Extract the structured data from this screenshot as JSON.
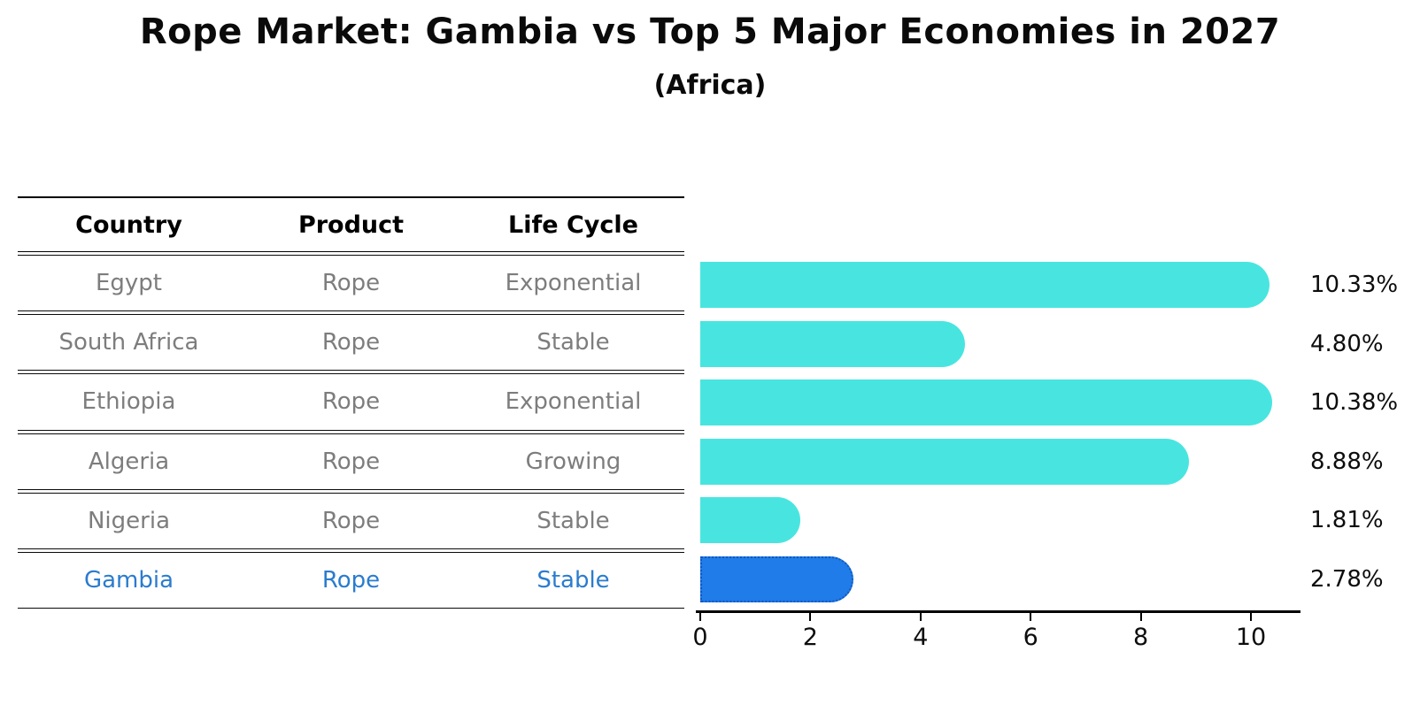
{
  "title": "Rope Market: Gambia vs Top 5 Major Economies in 2027",
  "subtitle": "(Africa)",
  "table": {
    "headers": [
      "Country",
      "Product",
      "Life Cycle"
    ],
    "rows": [
      {
        "country": "Egypt",
        "product": "Rope",
        "life_cycle": "Exponential",
        "highlighted": false
      },
      {
        "country": "South Africa",
        "product": "Rope",
        "life_cycle": "Stable",
        "highlighted": false
      },
      {
        "country": "Ethiopia",
        "product": "Rope",
        "life_cycle": "Exponential",
        "highlighted": false
      },
      {
        "country": "Algeria",
        "product": "Rope",
        "life_cycle": "Growing",
        "highlighted": false
      },
      {
        "country": "Nigeria",
        "product": "Rope",
        "life_cycle": "Stable",
        "highlighted": false
      },
      {
        "country": "Gambia",
        "product": "Rope",
        "life_cycle": "Stable",
        "highlighted": true
      }
    ]
  },
  "chart_data": {
    "type": "bar",
    "orientation": "horizontal",
    "title": "Rope Market: Gambia vs Top 5 Major Economies in 2027",
    "subtitle": "(Africa)",
    "categories": [
      "Egypt",
      "South Africa",
      "Ethiopia",
      "Algeria",
      "Nigeria",
      "Gambia"
    ],
    "values": [
      10.33,
      4.8,
      10.38,
      8.88,
      1.81,
      2.78
    ],
    "value_labels": [
      "10.33%",
      "4.80%",
      "10.38%",
      "8.88%",
      "1.81%",
      "2.78%"
    ],
    "unit": "percent",
    "xlabel": "",
    "ylabel": "",
    "xticks": [
      0,
      2,
      4,
      6,
      8,
      10
    ],
    "xlim": [
      0,
      10.9
    ],
    "grid": false,
    "legend_position": "none",
    "highlight_index": 5
  },
  "colors": {
    "bar_fill": "#48E5E0",
    "highlight_bar_fill": "#1F7CE8",
    "highlight_bar_border": "#1257BE",
    "highlight_text": "#2A7CCE",
    "row_text": "#7D7D7D",
    "axis": "#000000"
  }
}
